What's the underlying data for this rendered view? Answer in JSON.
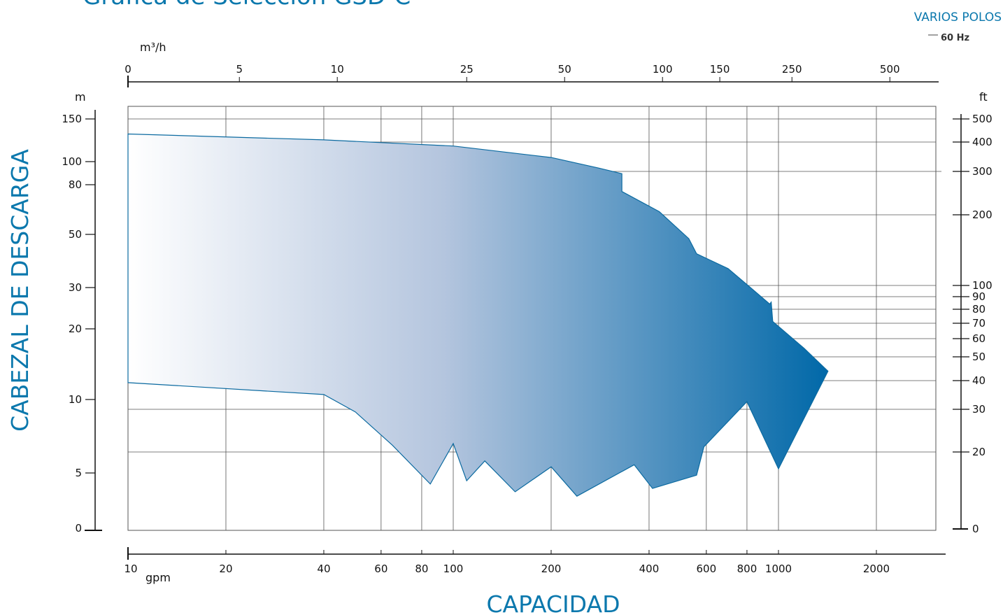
{
  "header": {
    "title": "Gráfica de Selección GSD-C",
    "poles_label": "VARIOS POLOS",
    "freq_label": "60 Hz"
  },
  "colors": {
    "accent": "#0b78ad",
    "gradient_start": "#ffffff",
    "gradient_end": "#0068a8",
    "envelope_stroke": "#0b6aa0",
    "grid": "#555555"
  },
  "chart_data": {
    "type": "area",
    "title": "Gráfica de Selección GSD-C",
    "subtitle": "VARIOS POLOS",
    "xlabel": "CAPACIDAD",
    "ylabel": "CABEZAL DE DESCARGA",
    "x_scale": "log",
    "xlim": [
      10,
      3000
    ],
    "x_unit": "gpm",
    "x_ticks": [
      10,
      20,
      40,
      60,
      80,
      100,
      200,
      400,
      600,
      800,
      1000,
      2000
    ],
    "x_tick_labels": [
      "10",
      "20",
      "40",
      "60",
      "80",
      "100",
      "200",
      "400",
      "600",
      "800",
      "1000",
      "2000"
    ],
    "x2_unit": "m³/h",
    "x2_ticks": [
      0,
      5,
      10,
      25,
      50,
      100,
      150,
      250,
      500
    ],
    "x2_tick_gpm": [
      10,
      22,
      44,
      110,
      220,
      440,
      660,
      1100,
      2200
    ],
    "y_unit": "m",
    "y_ticks": [
      0,
      5,
      10,
      20,
      30,
      50,
      80,
      100,
      150
    ],
    "y_tick_labels": [
      "0",
      "5",
      "10",
      "20",
      "30",
      "50",
      "80",
      "100",
      "150"
    ],
    "y2_unit": "ft",
    "y2_ticks": [
      0,
      20,
      30,
      40,
      50,
      60,
      70,
      80,
      90,
      100,
      200,
      300,
      400,
      500
    ],
    "y2_tick_labels": [
      "0",
      "20",
      "30",
      "40",
      "50",
      "60",
      "70",
      "80",
      "90",
      "100",
      "200",
      "300",
      "400",
      "500"
    ],
    "grid": true,
    "series": [
      {
        "type": "envelope",
        "upper": [
          [
            10,
            130
          ],
          [
            40,
            123
          ],
          [
            100,
            116
          ],
          [
            200,
            104
          ],
          [
            280,
            94
          ],
          [
            330,
            89
          ],
          [
            330,
            75
          ],
          [
            430,
            62
          ],
          [
            530,
            48
          ],
          [
            560,
            41.5
          ],
          [
            700,
            36
          ],
          [
            820,
            30
          ],
          [
            940,
            25.5
          ],
          [
            950,
            26
          ],
          [
            960,
            21.5
          ],
          [
            1200,
            16.5
          ],
          [
            1420,
            13.2
          ]
        ],
        "lower": [
          [
            1420,
            13.2
          ],
          [
            1000,
            5.2
          ],
          [
            800,
            9.8
          ],
          [
            590,
            6.4
          ],
          [
            560,
            4.8
          ],
          [
            410,
            3.6
          ],
          [
            360,
            5.4
          ],
          [
            240,
            2.9
          ],
          [
            200,
            5.3
          ],
          [
            155,
            3.3
          ],
          [
            125,
            5.6
          ],
          [
            110,
            4.3
          ],
          [
            100,
            6.6
          ],
          [
            85,
            4.0
          ],
          [
            65,
            6.5
          ],
          [
            50,
            8.9
          ],
          [
            40,
            10.5
          ],
          [
            10,
            11.8
          ]
        ]
      }
    ]
  }
}
